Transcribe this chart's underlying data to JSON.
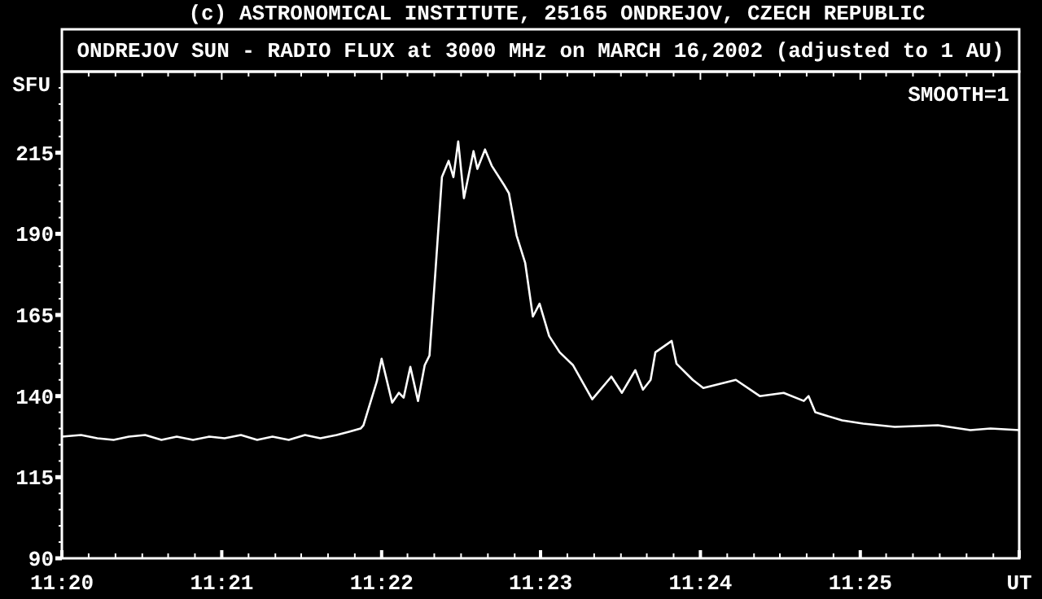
{
  "chart_data": {
    "type": "line",
    "title": "ONDREJOV SUN - RADIO FLUX at 3000 MHz on MARCH 16,2002 (adjusted to 1 AU)",
    "ylabel": "SFU",
    "annotations": [
      "(c) ASTRONOMICAL INSTITUTE, 25165 ONDREJOV, CZECH REPUBLIC",
      "SMOOTH=1"
    ],
    "x": [
      11.3333,
      11.3353,
      11.337,
      11.3387,
      11.3403,
      11.342,
      11.3437,
      11.3453,
      11.347,
      11.3487,
      11.3503,
      11.352,
      11.3537,
      11.3553,
      11.357,
      11.3587,
      11.3603,
      11.362,
      11.3633,
      11.3645,
      11.3648,
      11.3662,
      11.3667,
      11.3678,
      11.3685,
      11.369,
      11.3697,
      11.3705,
      11.3712,
      11.3717,
      11.3723,
      11.373,
      11.3737,
      11.3742,
      11.3747,
      11.3753,
      11.3763,
      11.3767,
      11.3775,
      11.3782,
      11.3795,
      11.38,
      11.3808,
      11.3817,
      11.3825,
      11.3832,
      11.3842,
      11.3853,
      11.3867,
      11.3887,
      11.3907,
      11.3918,
      11.3932,
      11.394,
      11.3948,
      11.3953,
      11.397,
      11.3975,
      11.3992,
      11.4003,
      11.4037,
      11.4062,
      11.4087,
      11.4108,
      11.4113,
      11.412,
      11.4148,
      11.417,
      11.4203,
      11.4248,
      11.4282,
      11.4303,
      11.4333
    ],
    "series": [
      {
        "color": "#ffffff",
        "values": [
          127.5,
          128,
          127,
          126.5,
          127.5,
          128,
          126.5,
          127.5,
          126.5,
          127.5,
          127,
          128,
          126.5,
          127.5,
          126.5,
          128,
          127,
          128,
          129,
          130,
          131,
          144.5,
          151.5,
          138,
          141,
          139.5,
          149,
          138.5,
          149.5,
          152.5,
          177.5,
          207.5,
          212.5,
          207.5,
          218.5,
          201,
          215.5,
          210,
          216,
          211,
          205,
          202.5,
          189.5,
          181,
          164.5,
          168.5,
          158.5,
          153.5,
          149.5,
          139,
          146,
          141,
          148,
          142,
          145,
          153.5,
          157,
          150,
          145,
          142.5,
          145,
          140,
          141,
          138.5,
          140,
          135,
          132.5,
          131.5,
          130.5,
          131,
          129.5,
          130,
          129.5
        ]
      }
    ],
    "xlim": [
      11.3333,
      11.4333
    ],
    "xticks": [
      {
        "value": 11.3333,
        "label": "11:20"
      },
      {
        "value": 11.35,
        "label": "11:21"
      },
      {
        "value": 11.3667,
        "label": "11:22"
      },
      {
        "value": 11.3833,
        "label": "11:23"
      },
      {
        "value": 11.4,
        "label": "11:24"
      },
      {
        "value": 11.4167,
        "label": "11:25"
      },
      {
        "value": 11.4333,
        "label": "UT"
      },
      {
        "value": 11.3361,
        "label": null
      },
      {
        "value": 11.3389,
        "label": null
      },
      {
        "value": 11.3417,
        "label": null
      },
      {
        "value": 11.3444,
        "label": null
      },
      {
        "value": 11.3472,
        "label": null
      },
      {
        "value": 11.3528,
        "label": null
      },
      {
        "value": 11.3556,
        "label": null
      },
      {
        "value": 11.3583,
        "label": null
      },
      {
        "value": 11.3611,
        "label": null
      },
      {
        "value": 11.3639,
        "label": null
      },
      {
        "value": 11.3694,
        "label": null
      },
      {
        "value": 11.3722,
        "label": null
      },
      {
        "value": 11.375,
        "label": null
      },
      {
        "value": 11.3778,
        "label": null
      },
      {
        "value": 11.3806,
        "label": null
      },
      {
        "value": 11.3861,
        "label": null
      },
      {
        "value": 11.3889,
        "label": null
      },
      {
        "value": 11.3917,
        "label": null
      },
      {
        "value": 11.3944,
        "label": null
      },
      {
        "value": 11.3972,
        "label": null
      },
      {
        "value": 11.4028,
        "label": null
      },
      {
        "value": 11.4056,
        "label": null
      },
      {
        "value": 11.4083,
        "label": null
      },
      {
        "value": 11.4111,
        "label": null
      },
      {
        "value": 11.4139,
        "label": null
      },
      {
        "value": 11.4194,
        "label": null
      },
      {
        "value": 11.4222,
        "label": null
      },
      {
        "value": 11.425,
        "label": null
      },
      {
        "value": 11.4278,
        "label": null
      },
      {
        "value": 11.4306,
        "label": null
      }
    ],
    "ylim": [
      90,
      240
    ],
    "yticks": [
      90,
      115,
      140,
      165,
      190,
      215,
      {
        "value": 95,
        "label": null
      },
      {
        "value": 100,
        "label": null
      },
      {
        "value": 105,
        "label": null
      },
      {
        "value": 110,
        "label": null
      },
      {
        "value": 120,
        "label": null
      },
      {
        "value": 125,
        "label": null
      },
      {
        "value": 130,
        "label": null
      },
      {
        "value": 135,
        "label": null
      },
      {
        "value": 145,
        "label": null
      },
      {
        "value": 150,
        "label": null
      },
      {
        "value": 155,
        "label": null
      },
      {
        "value": 160,
        "label": null
      },
      {
        "value": 170,
        "label": null
      },
      {
        "value": 175,
        "label": null
      },
      {
        "value": 180,
        "label": null
      },
      {
        "value": 185,
        "label": null
      },
      {
        "value": 195,
        "label": null
      },
      {
        "value": 200,
        "label": null
      },
      {
        "value": 205,
        "label": null
      },
      {
        "value": 210,
        "label": null
      },
      {
        "value": 220,
        "label": null
      },
      {
        "value": 225,
        "label": null
      },
      {
        "value": 230,
        "label": null
      },
      {
        "value": 235,
        "label": null
      }
    ],
    "grid": false
  }
}
